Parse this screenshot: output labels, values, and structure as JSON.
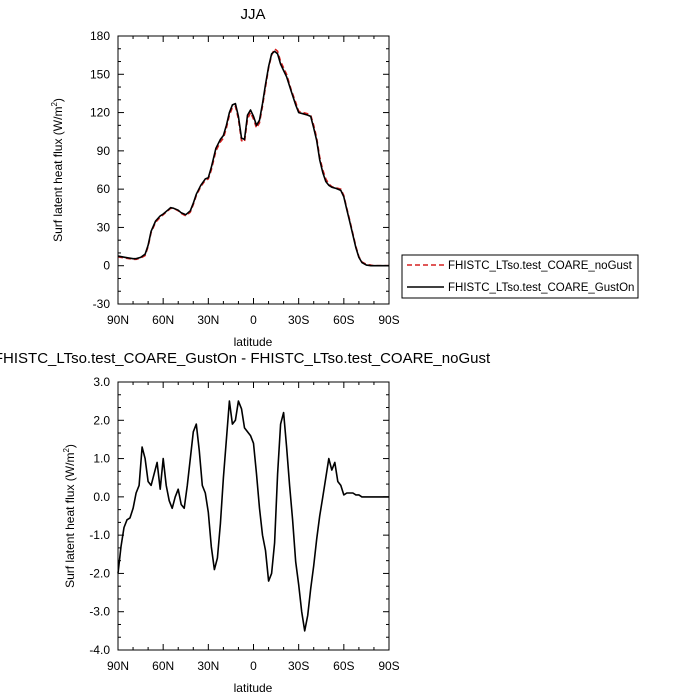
{
  "chart_data": [
    {
      "type": "line",
      "title": "JJA",
      "xlabel": "latitude",
      "ylabel": "Surf latent heat flux (W/m",
      "ylabel_sup": "2",
      "ylabel_end": ")",
      "xlim": [
        90,
        -90
      ],
      "ylim": [
        -30,
        180
      ],
      "x_ticks": [
        {
          "value": 90,
          "label": "90N"
        },
        {
          "value": 60,
          "label": "60N"
        },
        {
          "value": 30,
          "label": "30N"
        },
        {
          "value": 0,
          "label": "0"
        },
        {
          "value": -30,
          "label": "30S"
        },
        {
          "value": -60,
          "label": "60S"
        },
        {
          "value": -90,
          "label": "90S"
        }
      ],
      "y_ticks": [
        {
          "value": 180,
          "label": "180"
        },
        {
          "value": 150,
          "label": "150"
        },
        {
          "value": 120,
          "label": "120"
        },
        {
          "value": 90,
          "label": "90"
        },
        {
          "value": 60,
          "label": "60"
        },
        {
          "value": 30,
          "label": "30"
        },
        {
          "value": 0,
          "label": "0"
        },
        {
          "value": -30,
          "label": "-30"
        }
      ],
      "legend": {
        "placement": "right"
      },
      "series": [
        {
          "name": "FHISTC_LTso.test_COARE_noGust",
          "color": "#d62020",
          "style": "dashed",
          "x": [
            90,
            85,
            80,
            78,
            75,
            72,
            70,
            68,
            65,
            62,
            60,
            57,
            55,
            53,
            50,
            48,
            45,
            42,
            40,
            38,
            35,
            32,
            30,
            28,
            25,
            22,
            20,
            18,
            16,
            14,
            12,
            10,
            8,
            6,
            4,
            2,
            0,
            -2,
            -4,
            -6,
            -8,
            -10,
            -12,
            -14,
            -16,
            -18,
            -20,
            -22,
            -25,
            -28,
            -30,
            -33,
            -36,
            -38,
            -40,
            -42,
            -44,
            -46,
            -48,
            -50,
            -52,
            -55,
            -58,
            -60,
            -62,
            -64,
            -66,
            -68,
            -70,
            -72,
            -75,
            -78,
            -80,
            -83,
            -86,
            -90
          ],
          "values": [
            7,
            6,
            5,
            5,
            6,
            8,
            15,
            26,
            34,
            38,
            40,
            43,
            45,
            45,
            43,
            41,
            39,
            42,
            48,
            55,
            62,
            67,
            68,
            75,
            90,
            97,
            100,
            108,
            118,
            124,
            125,
            115,
            98,
            97,
            115,
            120,
            115,
            108,
            112,
            125,
            140,
            155,
            165,
            170,
            168,
            160,
            155,
            150,
            138,
            128,
            121,
            120,
            119,
            118,
            110,
            100,
            85,
            75,
            68,
            64,
            62,
            61,
            60,
            55,
            45,
            35,
            25,
            15,
            7,
            3,
            1,
            0.5,
            0,
            0,
            0,
            0
          ]
        },
        {
          "name": "FHISTC_LTso.test_COARE_GustOn",
          "color": "#000000",
          "style": "solid",
          "x": [
            90,
            85,
            80,
            78,
            75,
            72,
            70,
            68,
            65,
            62,
            60,
            57,
            55,
            53,
            50,
            48,
            45,
            42,
            40,
            38,
            35,
            32,
            30,
            28,
            25,
            22,
            20,
            18,
            16,
            14,
            12,
            10,
            8,
            6,
            4,
            2,
            0,
            -2,
            -4,
            -6,
            -8,
            -10,
            -12,
            -14,
            -16,
            -18,
            -20,
            -22,
            -25,
            -28,
            -30,
            -33,
            -36,
            -38,
            -40,
            -42,
            -44,
            -46,
            -48,
            -50,
            -52,
            -55,
            -58,
            -60,
            -62,
            -64,
            -66,
            -68,
            -70,
            -72,
            -75,
            -78,
            -80,
            -83,
            -86,
            -90
          ],
          "values": [
            7.5,
            6.5,
            5.5,
            5.5,
            6.5,
            9,
            16,
            27,
            35,
            39,
            40.5,
            43.5,
            45.5,
            45,
            43.5,
            41.5,
            40,
            43,
            49,
            56,
            63,
            68,
            69,
            77,
            92,
            99,
            102,
            110,
            120,
            126,
            127,
            117,
            100,
            99,
            118,
            122,
            117,
            110,
            114,
            127,
            142,
            156,
            166,
            168,
            166,
            158,
            153,
            148,
            137,
            126,
            120,
            119,
            118,
            117,
            108,
            98,
            83,
            73,
            66,
            63,
            61.5,
            60.5,
            59,
            54,
            44,
            34,
            24,
            14,
            6.5,
            2.5,
            0.5,
            0,
            0,
            0,
            0,
            0
          ]
        }
      ]
    },
    {
      "type": "line",
      "title": "FHISTC_LTso.test_COARE_GustOn - FHISTC_LTso.test_COARE_noGust",
      "xlabel": "latitude",
      "ylabel": "Surf latent heat flux (W/m",
      "ylabel_sup": "2",
      "ylabel_end": ")",
      "xlim": [
        90,
        -90
      ],
      "ylim": [
        -4.0,
        3.0
      ],
      "x_ticks": [
        {
          "value": 90,
          "label": "90N"
        },
        {
          "value": 60,
          "label": "60N"
        },
        {
          "value": 30,
          "label": "30N"
        },
        {
          "value": 0,
          "label": "0"
        },
        {
          "value": -30,
          "label": "30S"
        },
        {
          "value": -60,
          "label": "60S"
        },
        {
          "value": -90,
          "label": "90S"
        }
      ],
      "y_ticks": [
        {
          "value": 3.0,
          "label": "3.0"
        },
        {
          "value": 2.0,
          "label": "2.0"
        },
        {
          "value": 1.0,
          "label": "1.0"
        },
        {
          "value": 0.0,
          "label": "0.0"
        },
        {
          "value": -1.0,
          "label": "-1.0"
        },
        {
          "value": -2.0,
          "label": "-2.0"
        },
        {
          "value": -3.0,
          "label": "-3.0"
        },
        {
          "value": -4.0,
          "label": "-4.0"
        }
      ],
      "series": [
        {
          "color": "#000000",
          "style": "solid",
          "x": [
            90,
            88,
            86,
            84,
            82,
            80,
            78,
            76,
            74,
            72,
            70,
            68,
            66,
            64,
            62,
            60,
            58,
            56,
            54,
            52,
            50,
            48,
            46,
            44,
            42,
            40,
            38,
            36,
            34,
            32,
            30,
            28,
            26,
            24,
            22,
            20,
            18,
            16,
            14,
            12,
            10,
            8,
            6,
            4,
            2,
            0,
            -2,
            -4,
            -6,
            -8,
            -10,
            -12,
            -14,
            -16,
            -18,
            -20,
            -22,
            -24,
            -26,
            -28,
            -30,
            -32,
            -34,
            -36,
            -38,
            -40,
            -42,
            -44,
            -46,
            -48,
            -50,
            -52,
            -54,
            -56,
            -58,
            -60,
            -62,
            -64,
            -66,
            -68,
            -70,
            -72,
            -74,
            -76,
            -78,
            -80,
            -82,
            -84,
            -86,
            -88,
            -90
          ],
          "values": [
            -2.0,
            -1.3,
            -0.8,
            -0.6,
            -0.55,
            -0.3,
            0.1,
            0.3,
            1.3,
            1.0,
            0.4,
            0.3,
            0.6,
            0.9,
            0.2,
            1.0,
            0.3,
            -0.1,
            -0.3,
            0.0,
            0.2,
            -0.2,
            -0.3,
            0.3,
            1.0,
            1.7,
            1.9,
            1.2,
            0.3,
            0.1,
            -0.4,
            -1.3,
            -1.9,
            -1.6,
            -0.7,
            0.5,
            1.5,
            2.5,
            1.9,
            2.0,
            2.5,
            2.3,
            1.8,
            1.7,
            1.6,
            1.4,
            0.6,
            -0.3,
            -1.0,
            -1.4,
            -2.2,
            -2.0,
            -1.2,
            0.6,
            1.9,
            2.2,
            1.3,
            0.3,
            -0.6,
            -1.7,
            -2.3,
            -3.0,
            -3.5,
            -3.1,
            -2.4,
            -1.8,
            -1.1,
            -0.5,
            0.0,
            0.5,
            1.0,
            0.7,
            0.9,
            0.4,
            0.3,
            0.05,
            0.1,
            0.1,
            0.1,
            0.05,
            0.05,
            0.0,
            0.0,
            0.0,
            0.0,
            0.0,
            0.0,
            0.0,
            0.0,
            0.0,
            0.0
          ]
        }
      ]
    }
  ]
}
